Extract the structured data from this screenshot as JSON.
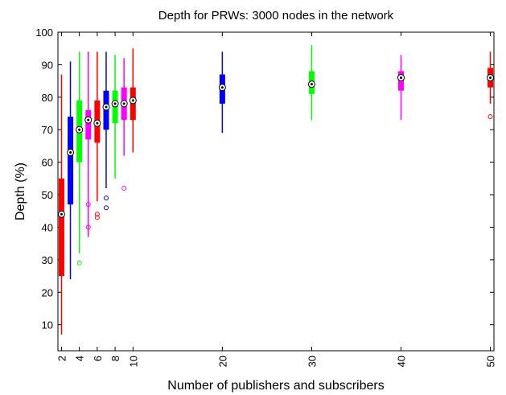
{
  "chart_data": {
    "type": "box",
    "title": "Depth for PRWs: 3000 nodes in the network",
    "xlabel": "Number of publishers and subscribers",
    "ylabel": "Depth (%)",
    "xlim": [
      1.6,
      50.4
    ],
    "ylim": [
      2,
      100
    ],
    "xticks": [
      2,
      4,
      6,
      8,
      10,
      20,
      30,
      40,
      50
    ],
    "yticks": [
      10,
      20,
      30,
      40,
      50,
      60,
      70,
      80,
      90,
      100
    ],
    "boxes": [
      {
        "x": 2,
        "low": 7,
        "q1": 25,
        "median": 44,
        "q3": 55,
        "high": 87,
        "outliers": [],
        "color": "#ff0000"
      },
      {
        "x": 3,
        "low": 24,
        "q1": 47,
        "median": 63,
        "q3": 74,
        "high": 91,
        "outliers": [],
        "color": "#0000ff"
      },
      {
        "x": 4,
        "low": 32,
        "q1": 60,
        "median": 70,
        "q3": 79,
        "high": 94,
        "outliers": [
          29
        ],
        "color": "#00ff00"
      },
      {
        "x": 5,
        "low": 37,
        "q1": 67,
        "median": 73,
        "q3": 76,
        "high": 94,
        "outliers": [
          40,
          47
        ],
        "color": "#ff00ff"
      },
      {
        "x": 6,
        "low": 48,
        "q1": 66,
        "median": 72,
        "q3": 79,
        "high": 94,
        "outliers": [
          43,
          44
        ],
        "color": "#ff0000"
      },
      {
        "x": 7,
        "low": 52,
        "q1": 70,
        "median": 77,
        "q3": 82,
        "high": 94,
        "outliers": [
          46,
          49
        ],
        "color": "#0000ff"
      },
      {
        "x": 8,
        "low": 55,
        "q1": 72,
        "median": 78,
        "q3": 82,
        "high": 93,
        "outliers": [],
        "color": "#00ff00"
      },
      {
        "x": 9,
        "low": 62,
        "q1": 73,
        "median": 78,
        "q3": 83,
        "high": 92,
        "outliers": [
          52
        ],
        "color": "#ff00ff"
      },
      {
        "x": 10,
        "low": 63,
        "q1": 73,
        "median": 79,
        "q3": 83,
        "high": 95,
        "outliers": [],
        "color": "#ff0000"
      },
      {
        "x": 20,
        "low": 69,
        "q1": 78,
        "median": 83,
        "q3": 87,
        "high": 94,
        "outliers": [],
        "color": "#0000ff"
      },
      {
        "x": 30,
        "low": 73,
        "q1": 81,
        "median": 84,
        "q3": 88,
        "high": 96,
        "outliers": [],
        "color": "#00ff00"
      },
      {
        "x": 40,
        "low": 73,
        "q1": 82,
        "median": 86,
        "q3": 88,
        "high": 93,
        "outliers": [],
        "color": "#ff00ff"
      },
      {
        "x": 50,
        "low": 78,
        "q1": 83,
        "median": 86,
        "q3": 89,
        "high": 94,
        "outliers": [
          74
        ],
        "color": "#ff0000"
      }
    ]
  }
}
